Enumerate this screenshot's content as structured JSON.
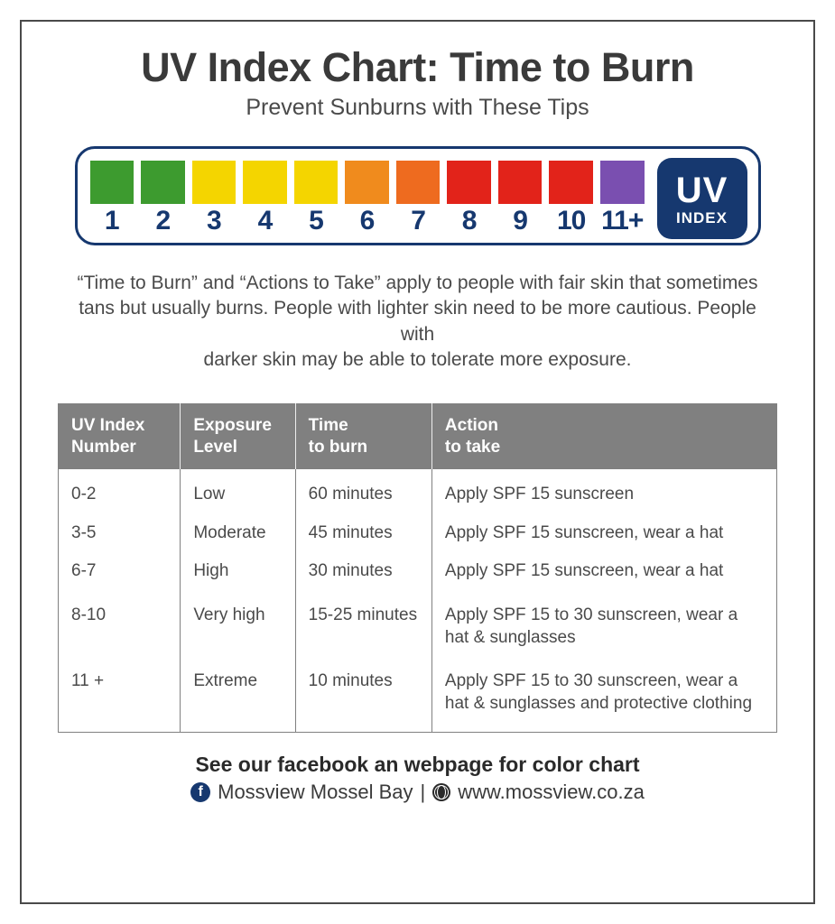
{
  "title": "UV Index Chart: Time to Burn",
  "subtitle": "Prevent Sunburns with These Tips",
  "scale": {
    "border_color": "#16386f",
    "cells": [
      {
        "n": "1",
        "color": "#3d9b2f"
      },
      {
        "n": "2",
        "color": "#3d9b2f"
      },
      {
        "n": "3",
        "color": "#f4d500"
      },
      {
        "n": "4",
        "color": "#f4d500"
      },
      {
        "n": "5",
        "color": "#f4d500"
      },
      {
        "n": "6",
        "color": "#f08b1d"
      },
      {
        "n": "7",
        "color": "#ee6b1f"
      },
      {
        "n": "8",
        "color": "#e2231a"
      },
      {
        "n": "9",
        "color": "#e2231a"
      },
      {
        "n": "10",
        "color": "#e2231a"
      },
      {
        "n": "11+",
        "color": "#7a4fb0"
      }
    ],
    "badge_top": "UV",
    "badge_bottom": "INDEX"
  },
  "note": "“Time to Burn” and “Actions to Take” apply to people with fair skin that sometimes tans but usually burns. People with lighter skin need to be more cautious. People with\ndarker skin may be able to tolerate more exposure.",
  "table": {
    "header_bg": "#808080",
    "cols": [
      "UV Index\nNumber",
      "Exposure\nLevel",
      "Time\nto burn",
      "Action\nto take"
    ],
    "rows": [
      [
        "0-2",
        "Low",
        "60 minutes",
        "Apply SPF 15 sunscreen"
      ],
      [
        "3-5",
        "Moderate",
        "45 minutes",
        "Apply SPF 15 sunscreen, wear a hat"
      ],
      [
        "6-7",
        "High",
        "30 minutes",
        "Apply SPF 15 sunscreen, wear a hat"
      ],
      [
        "8-10",
        "Very high",
        "15-25 minutes",
        "Apply SPF 15 to 30 sunscreen, wear a hat & sunglasses"
      ],
      [
        "11 +",
        "Extreme",
        "10 minutes",
        "Apply SPF 15 to 30 sunscreen, wear a hat & sunglasses and protective clothing"
      ]
    ]
  },
  "footer": {
    "line1": "See our facebook an webpage for color chart",
    "fb_name": "Mossview Mossel Bay",
    "divider": " | ",
    "url": "www.mossview.co.za"
  }
}
